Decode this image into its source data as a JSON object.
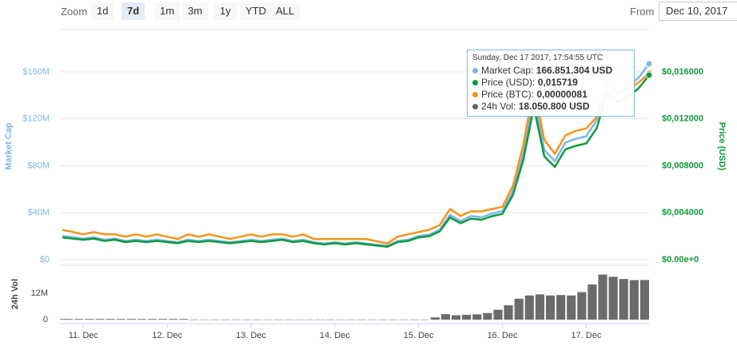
{
  "toolbar": {
    "zoom_label": "Zoom",
    "buttons": [
      "1d",
      "7d",
      "1m",
      "3m",
      "1y",
      "YTD",
      "ALL"
    ],
    "selected": 1,
    "from_label": "From",
    "from_date": "Dec 10, 2017"
  },
  "chart_data": [
    {
      "type": "line",
      "ylabel": "Market Cap",
      "y2label": "Price (USD)",
      "x": [
        10.75,
        10.875,
        11,
        11.125,
        11.25,
        11.375,
        11.5,
        11.625,
        11.75,
        11.875,
        12,
        12.125,
        12.25,
        12.375,
        12.5,
        12.625,
        12.75,
        12.875,
        13,
        13.125,
        13.25,
        13.375,
        13.5,
        13.625,
        13.75,
        13.875,
        14,
        14.125,
        14.25,
        14.375,
        14.5,
        14.625,
        14.75,
        14.875,
        15,
        15.125,
        15.25,
        15.375,
        15.5,
        15.625,
        15.75,
        15.875,
        16,
        16.125,
        16.25,
        16.375,
        16.5,
        16.625,
        16.75,
        16.875,
        17,
        17.125,
        17.25,
        17.375,
        17.5,
        17.625,
        17.75
      ],
      "xlim": [
        10.72,
        17.75
      ],
      "ylim": [
        0,
        196000000
      ],
      "yticks": [
        {
          "value": 0,
          "label": "$0"
        },
        {
          "value": 40000000,
          "label": "$40M"
        },
        {
          "value": 80000000,
          "label": "$80M"
        },
        {
          "value": 120000000,
          "label": "$120M"
        },
        {
          "value": 160000000,
          "label": "$160M"
        }
      ],
      "y2lim": [
        0,
        0.0196
      ],
      "y2ticks": [
        {
          "value": 0,
          "label": "$0.00e+0"
        },
        {
          "value": 0.004,
          "label": "$0,004000"
        },
        {
          "value": 0.008,
          "label": "$0,008000"
        },
        {
          "value": 0.012,
          "label": "$0,012000"
        },
        {
          "value": 0.016,
          "label": "$0,016000"
        }
      ],
      "y3lim": [
        0,
        1e-06
      ],
      "grid": true,
      "series": [
        {
          "axis": "y",
          "color": "#7cb5ec",
          "values": [
            20200000,
            19100000,
            18000000,
            19100000,
            17000000,
            18000000,
            15900000,
            17000000,
            15900000,
            17000000,
            15900000,
            14900000,
            17000000,
            15900000,
            17000000,
            15900000,
            14900000,
            15900000,
            17000000,
            15900000,
            17000000,
            18000000,
            15900000,
            17000000,
            14900000,
            13800000,
            14900000,
            13800000,
            14900000,
            13800000,
            12700000,
            11700000,
            15900000,
            17000000,
            20200000,
            21200000,
            25500000,
            38200000,
            32900000,
            37200000,
            36100000,
            39300000,
            41400000,
            58400000,
            90200000,
            138000000,
            93400000,
            83900000,
            99800000,
            103000000,
            105100000,
            118900000,
            150700000,
            142200000,
            147500000,
            155000000,
            166851304
          ]
        },
        {
          "axis": "y3",
          "color": "#f7931a",
          "values": [
            1.3e-07,
            1.2e-07,
            1.1e-07,
            1.2e-07,
            1.1e-07,
            1.1e-07,
            1e-07,
            1.1e-07,
            1e-07,
            1.1e-07,
            1e-07,
            9e-08,
            1.1e-07,
            1e-07,
            1.1e-07,
            1e-07,
            9e-08,
            1e-07,
            1.1e-07,
            1e-07,
            1.1e-07,
            1.1e-07,
            1e-07,
            1.1e-07,
            9e-08,
            9e-08,
            9e-08,
            9e-08,
            9e-08,
            9e-08,
            8e-08,
            7e-08,
            1e-07,
            1.1e-07,
            1.2e-07,
            1.3e-07,
            1.5e-07,
            2.2e-07,
            1.9e-07,
            2.1e-07,
            2.1e-07,
            2.2e-07,
            2.3e-07,
            3.2e-07,
            5e-07,
            7.5e-07,
            5.2e-07,
            4.6e-07,
            5.4e-07,
            5.6e-07,
            5.7e-07,
            6.2e-07,
            7.7e-07,
            7.2e-07,
            7.4e-07,
            7.7e-07,
            8.1e-07
          ]
        },
        {
          "axis": "y2",
          "color": "#0f9a3c",
          "values": [
            0.0019,
            0.0018,
            0.0017,
            0.0018,
            0.0016,
            0.0017,
            0.0015,
            0.0016,
            0.0015,
            0.0016,
            0.0015,
            0.0014,
            0.0016,
            0.0015,
            0.0016,
            0.0015,
            0.0014,
            0.0015,
            0.0016,
            0.0015,
            0.0016,
            0.0017,
            0.0015,
            0.0016,
            0.0014,
            0.0013,
            0.0014,
            0.0013,
            0.0014,
            0.0013,
            0.0012,
            0.0011,
            0.0015,
            0.0016,
            0.0019,
            0.002,
            0.0024,
            0.0036,
            0.0031,
            0.0035,
            0.0034,
            0.0037,
            0.0039,
            0.0055,
            0.0085,
            0.013,
            0.0088,
            0.0079,
            0.0094,
            0.0097,
            0.0099,
            0.0112,
            0.0142,
            0.0134,
            0.0139,
            0.0146,
            0.015719
          ]
        }
      ],
      "tooltip": {
        "title": "Sunday, Dec 17 2017, 17:54:55 UTC",
        "rows": [
          {
            "label": "Market Cap:",
            "value": "166.851.304 USD",
            "color": "#7cb5ec"
          },
          {
            "label": "Price (USD):",
            "value": "0,015719",
            "color": "#0f9a3c"
          },
          {
            "label": "Price (BTC):",
            "value": "0,00000081",
            "color": "#f7931a"
          },
          {
            "label": "24h Vol:",
            "value": "18.050.800 USD",
            "color": "#666666"
          }
        ]
      }
    },
    {
      "type": "bar",
      "ylabel": "24h Vol",
      "x": [
        10.75,
        10.875,
        11,
        11.125,
        11.25,
        11.375,
        11.5,
        11.625,
        11.75,
        11.875,
        12,
        12.125,
        12.25,
        12.375,
        12.5,
        12.625,
        12.75,
        12.875,
        13,
        13.125,
        13.25,
        13.375,
        13.5,
        13.625,
        13.75,
        13.875,
        14,
        14.125,
        14.25,
        14.375,
        14.5,
        14.625,
        14.75,
        14.875,
        15,
        15.125,
        15.25,
        15.375,
        15.5,
        15.625,
        15.75,
        15.875,
        16,
        16.125,
        16.25,
        16.375,
        16.5,
        16.625,
        16.75,
        16.875,
        17,
        17.125,
        17.25,
        17.375,
        17.5,
        17.625,
        17.75
      ],
      "xlim": [
        10.72,
        17.75
      ],
      "xticks": [
        {
          "value": 11,
          "label": "11. Dec"
        },
        {
          "value": 12,
          "label": "12. Dec"
        },
        {
          "value": 13,
          "label": "13. Dec"
        },
        {
          "value": 14,
          "label": "14. Dec"
        },
        {
          "value": 15,
          "label": "15. Dec"
        },
        {
          "value": 16,
          "label": "16. Dec"
        },
        {
          "value": 17,
          "label": "17. Dec"
        }
      ],
      "ylim": [
        0,
        24000000
      ],
      "yticks": [
        0,
        {
          "value": 12000000,
          "label": "12M"
        }
      ],
      "color": "#6b6b6b",
      "values": [
        300000,
        300000,
        300000,
        300000,
        300000,
        300000,
        300000,
        300000,
        300000,
        300000,
        300000,
        300000,
        300000,
        50000,
        50000,
        50000,
        50000,
        50000,
        50000,
        50000,
        50000,
        50000,
        50000,
        50000,
        50000,
        50000,
        50000,
        50000,
        50000,
        50000,
        50000,
        50000,
        50000,
        50000,
        50000,
        50000,
        1000000,
        2500000,
        2000000,
        2200000,
        2400000,
        3000000,
        4500000,
        6500000,
        9500000,
        11000000,
        11500000,
        11000000,
        11200000,
        11000000,
        12500000,
        16000000,
        20500000,
        19500000,
        18500000,
        18000000,
        18050800
      ]
    }
  ]
}
